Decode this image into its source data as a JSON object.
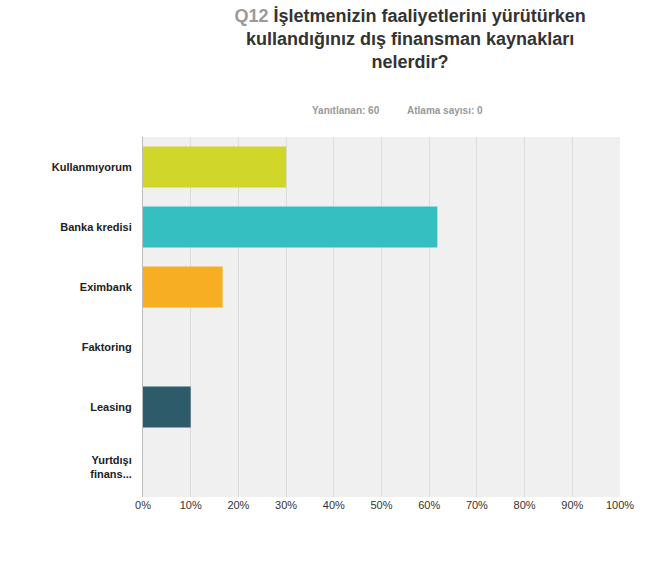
{
  "chart_data": {
    "type": "bar",
    "orientation": "horizontal",
    "title": "Q12 İşletmenizin faaliyetlerini yürütürken kullandığınız dış finansman kaynakları nelerdir?",
    "annotations": [
      "Yanıtlanan: 60",
      "Atlama sayısı: 0"
    ],
    "categories": [
      "Kullanmıyorum",
      "Banka kredisi",
      "Eximbank",
      "Faktoring",
      "Leasing",
      "Yurtdışı finans..."
    ],
    "values": [
      30,
      61.7,
      16.7,
      0,
      10,
      0
    ],
    "colors": [
      "#d0d62a",
      "#35bfc0",
      "#f7ae22",
      "#d25e53",
      "#2d5b6a",
      "#8e6db0"
    ],
    "xlim": [
      0,
      100
    ],
    "xticks": [
      {
        "value": 0,
        "label": "0%"
      },
      {
        "value": 10,
        "label": "10%"
      },
      {
        "value": 20,
        "label": "20%"
      },
      {
        "value": 30,
        "label": "30%"
      },
      {
        "value": 40,
        "label": "40%"
      },
      {
        "value": 50,
        "label": "50%"
      },
      {
        "value": 60,
        "label": "60%"
      },
      {
        "value": 70,
        "label": "70%"
      },
      {
        "value": 80,
        "label": "80%"
      },
      {
        "value": 90,
        "label": "90%"
      },
      {
        "value": 100,
        "label": "100%"
      }
    ],
    "grid": true
  }
}
